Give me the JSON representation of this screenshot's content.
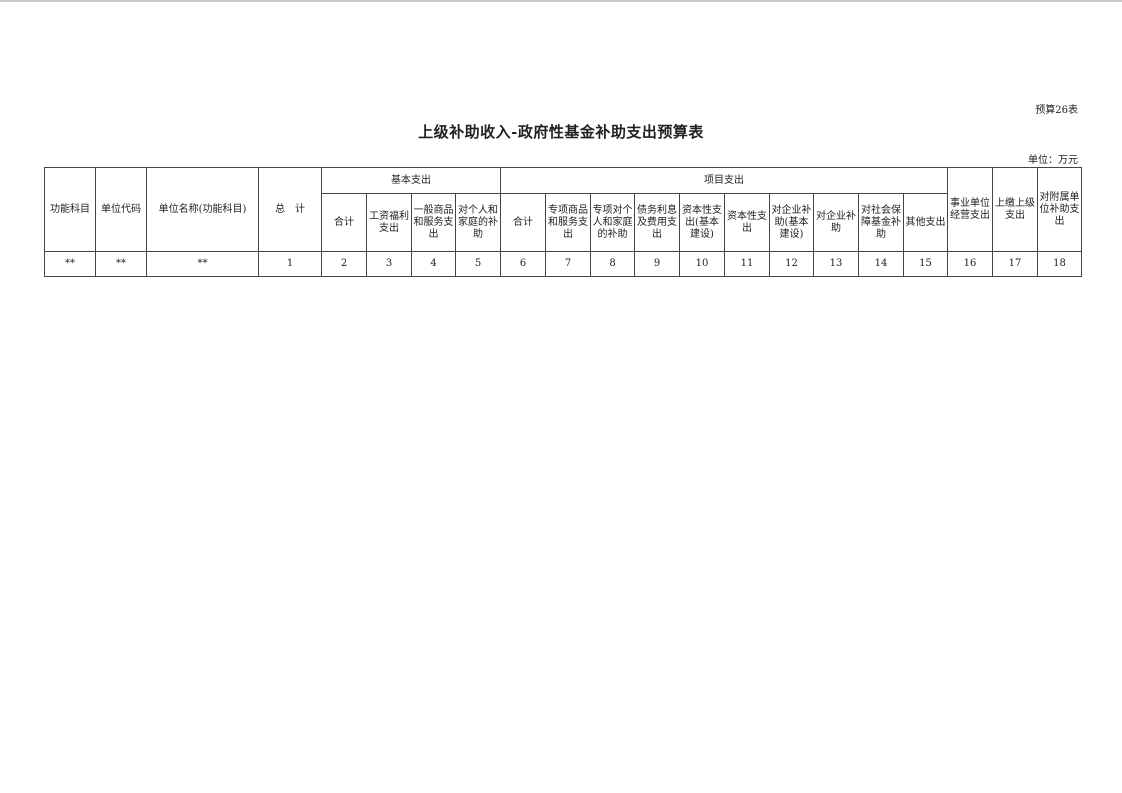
{
  "form_no": "预算26表",
  "title": "上级补助收入-政府性基金补助支出预算表",
  "unit": "单位：万元",
  "headers": {
    "func_subject": "功能科目",
    "unit_code": "单位代码",
    "unit_name": "单位名称(功能科目)",
    "total": "总　计",
    "basic": "基本支出",
    "project": "项目支出",
    "basic_cols": [
      "合计",
      "工资福利支出",
      "一般商品和服务支出",
      "对个人和家庭的补助"
    ],
    "project_cols": [
      "合计",
      "专项商品和服务支出",
      "专项对个人和家庭的补助",
      "债务利息及费用支出",
      "资本性支出(基本建设)",
      "资本性支出",
      "对企业补助(基本建设)",
      "对企业补助",
      "对社会保障基金补助",
      "其他支出"
    ],
    "business": "事业单位经营支出",
    "upper": "上缴上级支出",
    "affiliated": "对附属单位补助支出"
  },
  "row": [
    "**",
    "**",
    "**",
    "1",
    "2",
    "3",
    "4",
    "5",
    "6",
    "7",
    "8",
    "9",
    "10",
    "11",
    "12",
    "13",
    "14",
    "15",
    "16",
    "17",
    "18"
  ]
}
